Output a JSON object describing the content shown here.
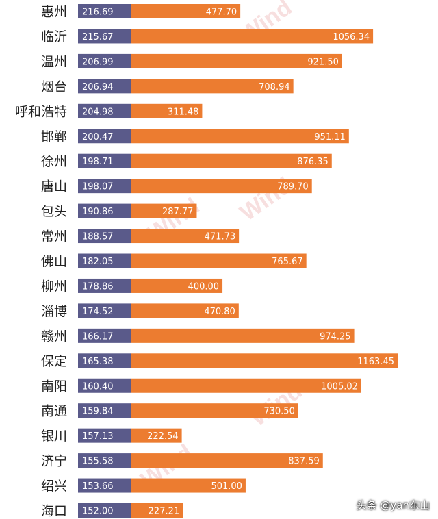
{
  "watermark": "Wind",
  "credit": "头条 @yan东山",
  "colors": {
    "left_bar": "#5a5a8a",
    "right_bar": "#ec7c30"
  },
  "chart_data": {
    "type": "bar",
    "orientation": "horizontal",
    "stacked": true,
    "categories": [
      "惠州",
      "临沂",
      "温州",
      "烟台",
      "呼和浩特",
      "邯郸",
      "徐州",
      "唐山",
      "包头",
      "常州",
      "佛山",
      "柳州",
      "淄博",
      "赣州",
      "保定",
      "南阳",
      "南通",
      "银川",
      "济宁",
      "绍兴",
      "海口"
    ],
    "series": [
      {
        "values": [
          216.69,
          215.67,
          206.99,
          206.94,
          204.98,
          200.47,
          198.71,
          198.07,
          190.86,
          188.57,
          182.05,
          178.86,
          174.52,
          166.17,
          165.38,
          160.4,
          159.84,
          157.13,
          155.58,
          153.66,
          152.0
        ],
        "labels": [
          "216.69",
          "215.67",
          "206.99",
          "206.94",
          "204.98",
          "200.47",
          "198.71",
          "198.07",
          "190.86",
          "188.57",
          "182.05",
          "178.86",
          "174.52",
          "166.17",
          "165.38",
          "160.40",
          "159.84",
          "157.13",
          "155.58",
          "153.66",
          "152.00"
        ]
      },
      {
        "values": [
          477.7,
          1056.34,
          921.5,
          708.94,
          311.48,
          951.11,
          876.35,
          789.7,
          287.77,
          471.73,
          765.67,
          400.0,
          470.8,
          974.25,
          1163.45,
          1005.02,
          730.5,
          222.54,
          837.59,
          501.0,
          227.21
        ],
        "labels": [
          "477.70",
          "1056.34",
          "921.50",
          "708.94",
          "311.48",
          "951.11",
          "876.35",
          "789.70",
          "287.77",
          "471.73",
          "765.67",
          "400.00",
          "470.80",
          "974.25",
          "1163.45",
          "1005.02",
          "730.50",
          "222.54",
          "837.59",
          "501.00",
          "227.21"
        ]
      }
    ]
  }
}
